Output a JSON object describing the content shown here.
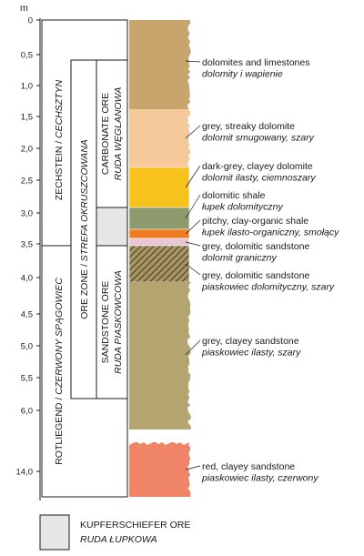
{
  "axis": {
    "unit": "m",
    "ticks": [
      "0",
      "0,5",
      "1,0",
      "1,5",
      "2,0",
      "2,5",
      "3,0",
      "3,5",
      "4,0",
      "4,5",
      "5,0",
      "5,5",
      "6,0",
      "14,0"
    ]
  },
  "columns": {
    "zechstein": {
      "main": "ZECHSTEIN / ",
      "italic": "CECHSZTYN"
    },
    "rotliegend": {
      "main": "ROTLIEGEND / ",
      "italic": "CZERWONY SPĄGOWIEC"
    },
    "ore_zone": {
      "main": "ORE ZONE / ",
      "italic": "STREFA OKRUSZCOWANA"
    },
    "carbonate_ore": {
      "line1": "CARBONATE ORE",
      "line2": "RUDA WĘGLANOWA"
    },
    "sandstone_ore": {
      "line1": "SANDSTONE ORE",
      "line2": "RUDA PIASKOWCOWA"
    }
  },
  "layers": [
    {
      "name": "dolomites and limestones",
      "name_pl": "dolomity i wapienie",
      "color": "#c9a56e"
    },
    {
      "name": "grey, streaky dolomite",
      "name_pl": "dolomit smugowany, szary",
      "color": "#f6c99a"
    },
    {
      "name": "dark-grey, clayey dolomite",
      "name_pl": "dolomit ilasty, ciemnoszary",
      "color": "#f7c21b"
    },
    {
      "name": "dolomitic shale",
      "name_pl": "łupek dolomityczny",
      "color": "#8c9a6c"
    },
    {
      "name": "pitchy, clay-organic shale",
      "name_pl": "łupek ilasto-organiczny, smołący",
      "color": "#ef7b22"
    },
    {
      "name": "grey, dolomitic sandstone",
      "name_pl": "dolomit graniczny",
      "color": "#e8c7d4"
    },
    {
      "name": "grey, dolomitic sandstone",
      "name_pl": "piaskowiec dolomityczny, szary",
      "color": "#a89565"
    },
    {
      "name": "grey, clayey sandstone",
      "name_pl": "piaskowiec ilasty, szary",
      "color": "#b4a46f"
    },
    {
      "name": "red, clayey sandstone",
      "name_pl": "piaskowiec ilasty, czerwony",
      "color": "#ef8466"
    }
  ],
  "legend": {
    "title": "KUPFERSCHIEFER ORE",
    "subtitle": "RUDA ŁUPKOWA",
    "color": "#e6e6e6"
  }
}
